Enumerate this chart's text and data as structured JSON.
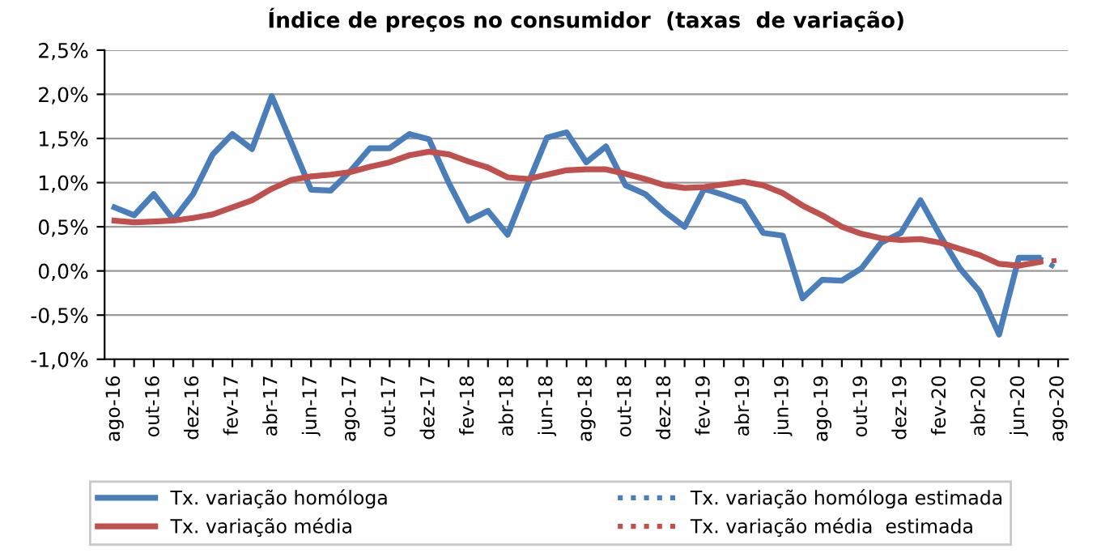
{
  "chart_data": {
    "type": "line",
    "title": "Índice de preços no consumidor  (taxas  de variação)",
    "categories": [
      "ago-16",
      null,
      "out-16",
      null,
      "dez-16",
      null,
      "fev-17",
      null,
      "abr-17",
      null,
      "jun-17",
      null,
      "ago-17",
      null,
      "out-17",
      null,
      "dez-17",
      null,
      "fev-18",
      null,
      "abr-18",
      null,
      "jun-18",
      null,
      "ago-18",
      null,
      "out-18",
      null,
      "dez-18",
      null,
      "fev-19",
      null,
      "abr-19",
      null,
      "jun-19",
      null,
      "ago-19",
      null,
      "out-19",
      null,
      "dez-19",
      null,
      "fev-20",
      null,
      "abr-20",
      null,
      "jun-20",
      null,
      "ago-20"
    ],
    "series": [
      {
        "name": "Tx. variação homóloga",
        "color": "#4a7ebb",
        "line_style": "solid",
        "values": [
          0.72,
          0.63,
          0.87,
          0.58,
          0.87,
          1.32,
          1.55,
          1.38,
          1.98,
          1.45,
          0.92,
          0.91,
          1.13,
          1.39,
          1.39,
          1.55,
          1.49,
          1.0,
          0.57,
          0.68,
          0.41,
          0.97,
          1.51,
          1.57,
          1.23,
          1.41,
          0.97,
          0.87,
          0.67,
          0.5,
          0.93,
          0.86,
          0.78,
          0.43,
          0.4,
          -0.31,
          -0.1,
          -0.11,
          0.03,
          0.32,
          0.43,
          0.8,
          0.4,
          0.03,
          -0.23,
          -0.72,
          0.15,
          0.15,
          null
        ]
      },
      {
        "name": "Tx. variação média",
        "color": "#c0504d",
        "line_style": "solid",
        "values": [
          0.57,
          0.55,
          0.56,
          0.57,
          0.6,
          0.64,
          0.72,
          0.8,
          0.93,
          1.03,
          1.07,
          1.09,
          1.12,
          1.18,
          1.23,
          1.31,
          1.35,
          1.32,
          1.24,
          1.17,
          1.06,
          1.04,
          1.09,
          1.14,
          1.15,
          1.15,
          1.1,
          1.04,
          0.97,
          0.94,
          0.95,
          0.98,
          1.01,
          0.97,
          0.88,
          0.74,
          0.63,
          0.5,
          0.42,
          0.37,
          0.35,
          0.36,
          0.32,
          0.25,
          0.18,
          0.08,
          0.06,
          0.1,
          null
        ]
      },
      {
        "name": "Tx. variação homóloga estimada",
        "color": "#4a7ebb",
        "line_style": "dotted",
        "values": [
          null,
          null,
          null,
          null,
          null,
          null,
          null,
          null,
          null,
          null,
          null,
          null,
          null,
          null,
          null,
          null,
          null,
          null,
          null,
          null,
          null,
          null,
          null,
          null,
          null,
          null,
          null,
          null,
          null,
          null,
          null,
          null,
          null,
          null,
          null,
          null,
          null,
          null,
          null,
          null,
          null,
          null,
          null,
          null,
          null,
          null,
          null,
          0.15,
          0.02
        ]
      },
      {
        "name": "Tx. variação média  estimada",
        "color": "#c0504d",
        "line_style": "dotted",
        "values": [
          null,
          null,
          null,
          null,
          null,
          null,
          null,
          null,
          null,
          null,
          null,
          null,
          null,
          null,
          null,
          null,
          null,
          null,
          null,
          null,
          null,
          null,
          null,
          null,
          null,
          null,
          null,
          null,
          null,
          null,
          null,
          null,
          null,
          null,
          null,
          null,
          null,
          null,
          null,
          null,
          null,
          null,
          null,
          null,
          null,
          null,
          null,
          0.1,
          0.12
        ]
      }
    ],
    "ylim": [
      -1.0,
      2.5
    ],
    "yticks": [
      {
        "value": -1.0,
        "label": "-1,0%"
      },
      {
        "value": -0.5,
        "label": "-0,5%"
      },
      {
        "value": 0.0,
        "label": "0,0%"
      },
      {
        "value": 0.5,
        "label": "0,5%"
      },
      {
        "value": 1.0,
        "label": "1,0%"
      },
      {
        "value": 1.5,
        "label": "1,5%"
      },
      {
        "value": 2.0,
        "label": "2,0%"
      },
      {
        "value": 2.5,
        "label": "2,5%"
      }
    ],
    "grid": "y",
    "legend": "bottom",
    "marker": "none"
  }
}
